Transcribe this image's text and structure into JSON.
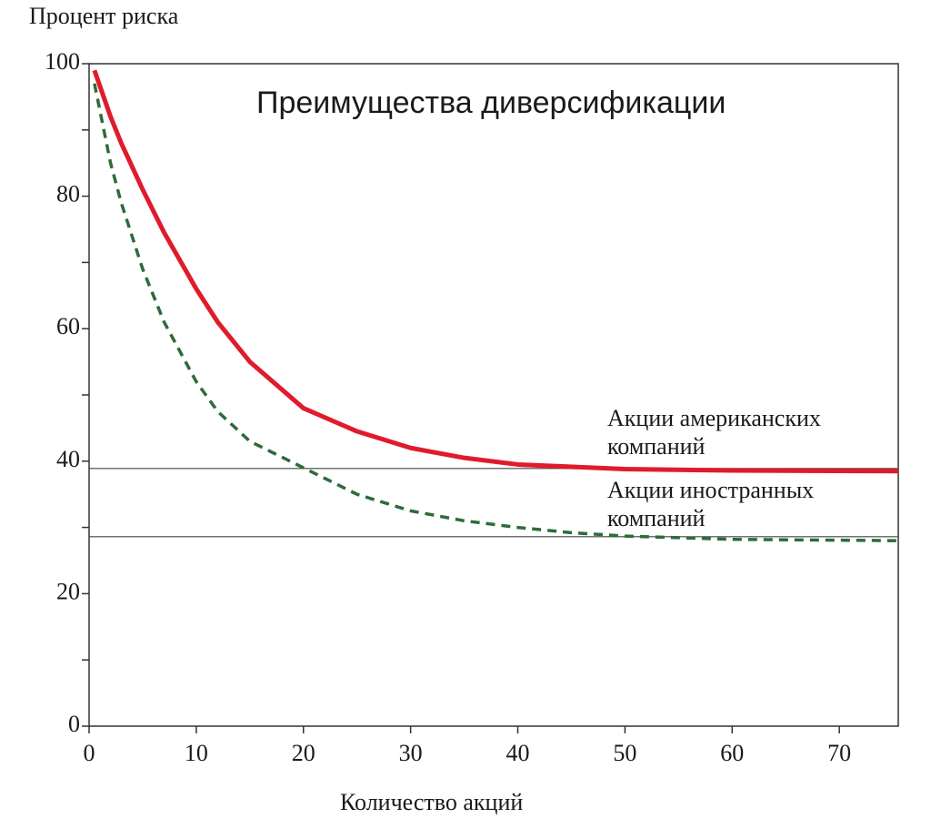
{
  "chart_data": {
    "type": "line",
    "title": "Преимущества диверсификации",
    "y_label": "Процент риска",
    "x_label": "Количество акций",
    "xlim": [
      0,
      75.5
    ],
    "ylim": [
      0,
      100
    ],
    "xticks": [
      0,
      10,
      20,
      30,
      40,
      50,
      60,
      70
    ],
    "yticks": [
      0,
      20,
      40,
      60,
      80,
      100
    ],
    "yminor": [
      10,
      30,
      50,
      70,
      90
    ],
    "hlines": [
      38.9,
      28.6
    ],
    "series": [
      {
        "name": [
          "Акции американских",
          "компаний"
        ],
        "color": "#e01b2c",
        "dash": false,
        "x": [
          0.5,
          2,
          3,
          5,
          7,
          10,
          12,
          15,
          20,
          25,
          30,
          35,
          40,
          50,
          60,
          75.5
        ],
        "values": [
          99,
          92,
          88,
          81,
          74.5,
          66,
          61,
          55,
          48,
          44.5,
          42,
          40.5,
          39.5,
          38.8,
          38.6,
          38.5
        ]
      },
      {
        "name": [
          "Акции иностранных",
          "компаний"
        ],
        "color": "#2e6b3a",
        "dash": true,
        "x": [
          0.5,
          1,
          2,
          3,
          5,
          7,
          10,
          12,
          15,
          20,
          25,
          30,
          35,
          40,
          45,
          50,
          60,
          75.5
        ],
        "values": [
          97,
          93,
          85,
          79,
          69,
          61,
          52,
          47.5,
          43,
          39,
          35,
          32.5,
          31,
          30,
          29.2,
          28.7,
          28.2,
          28
        ]
      }
    ]
  }
}
